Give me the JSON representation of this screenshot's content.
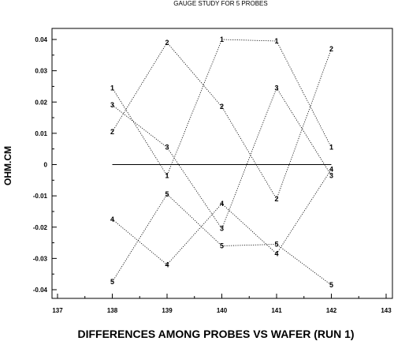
{
  "chart_data": {
    "type": "line",
    "title": "GAUGE STUDY FOR 5 PROBES",
    "xlabel": "DIFFERENCES AMONG PROBES VS WAFER (RUN 1)",
    "ylabel": "OHM.CM",
    "xlim": [
      137,
      143
    ],
    "ylim": [
      -0.04,
      0.04
    ],
    "x_ticks": [
      137,
      138,
      139,
      140,
      141,
      142,
      143
    ],
    "y_ticks": [
      -0.04,
      -0.03,
      -0.02,
      -0.01,
      0,
      0.01,
      0.02,
      0.03,
      0.04
    ],
    "x_tick_labels": [
      "137",
      "138",
      "139",
      "140",
      "141",
      "142",
      "143"
    ],
    "y_tick_labels": [
      "-0.04",
      "-0.03",
      "-0.02",
      "-0.01",
      "0",
      "0.01",
      "0.02",
      "0.03",
      "0.04"
    ],
    "x": [
      138,
      139,
      140,
      141,
      142
    ],
    "reference_line": {
      "y": 0,
      "x_range": [
        138,
        142
      ]
    },
    "grid": false,
    "series": [
      {
        "name": "1",
        "values": [
          0.0245,
          -0.0035,
          0.04,
          0.0395,
          0.0055
        ]
      },
      {
        "name": "2",
        "values": [
          0.0105,
          0.039,
          0.0185,
          -0.011,
          0.037
        ]
      },
      {
        "name": "3",
        "values": [
          0.019,
          0.0055,
          -0.0205,
          0.0245,
          -0.0035
        ]
      },
      {
        "name": "4",
        "values": [
          -0.0175,
          -0.032,
          -0.0125,
          -0.0285,
          -0.0015
        ]
      },
      {
        "name": "5",
        "values": [
          -0.0375,
          -0.0095,
          -0.026,
          -0.0255,
          -0.0385
        ]
      }
    ]
  }
}
